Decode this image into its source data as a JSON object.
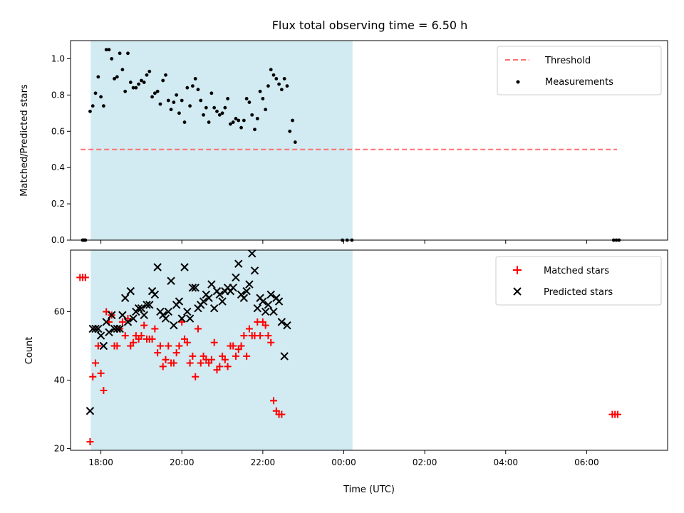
{
  "title": "Flux total observing time = 6.50 h",
  "colors": {
    "shade": "#add8e6",
    "threshold": "#ff7070",
    "measurement": "#000000",
    "matched": "#ff0000",
    "predicted": "#000000"
  },
  "chart_data": [
    {
      "type": "scatter",
      "ylabel": "Matched/Predicted stars",
      "xlim": [
        "17:15",
        "08:00"
      ],
      "ylim": [
        0,
        1.1
      ],
      "yticks": [
        0.0,
        0.2,
        0.4,
        0.6,
        0.8,
        1.0
      ],
      "ytick_labels": [
        "0.0",
        "0.2",
        "0.4",
        "0.6",
        "0.8",
        "1.0"
      ],
      "shaded_span": [
        "17:45",
        "00:13"
      ],
      "legend_position": "top-right",
      "legend": [
        "Threshold",
        "Measurements"
      ],
      "threshold": {
        "name": "Threshold",
        "y": 0.5,
        "x_range": [
          "17:30",
          "06:45"
        ],
        "style": "dashed"
      },
      "series": [
        {
          "name": "Measurements",
          "marker": "dot",
          "points": [
            [
              "17:33",
              0
            ],
            [
              "17:35",
              0
            ],
            [
              "17:37",
              0
            ],
            [
              "17:44",
              0.71
            ],
            [
              "17:48",
              0.74
            ],
            [
              "17:52",
              0.81
            ],
            [
              "17:56",
              0.9
            ],
            [
              "18:00",
              0.79
            ],
            [
              "18:04",
              0.74
            ],
            [
              "18:08",
              1.05
            ],
            [
              "18:12",
              1.05
            ],
            [
              "18:16",
              1.0
            ],
            [
              "18:20",
              0.89
            ],
            [
              "18:24",
              0.9
            ],
            [
              "18:28",
              1.03
            ],
            [
              "18:32",
              0.94
            ],
            [
              "18:36",
              0.82
            ],
            [
              "18:40",
              1.03
            ],
            [
              "18:44",
              0.87
            ],
            [
              "18:48",
              0.84
            ],
            [
              "18:52",
              0.84
            ],
            [
              "18:56",
              0.86
            ],
            [
              "19:00",
              0.88
            ],
            [
              "19:04",
              0.87
            ],
            [
              "19:08",
              0.91
            ],
            [
              "19:12",
              0.93
            ],
            [
              "19:16",
              0.79
            ],
            [
              "19:20",
              0.81
            ],
            [
              "19:24",
              0.82
            ],
            [
              "19:28",
              0.75
            ],
            [
              "19:32",
              0.88
            ],
            [
              "19:36",
              0.91
            ],
            [
              "19:40",
              0.77
            ],
            [
              "19:44",
              0.72
            ],
            [
              "19:48",
              0.76
            ],
            [
              "19:52",
              0.8
            ],
            [
              "19:56",
              0.7
            ],
            [
              "20:00",
              0.77
            ],
            [
              "20:04",
              0.65
            ],
            [
              "20:08",
              0.84
            ],
            [
              "20:12",
              0.74
            ],
            [
              "20:16",
              0.85
            ],
            [
              "20:20",
              0.89
            ],
            [
              "20:24",
              0.83
            ],
            [
              "20:28",
              0.77
            ],
            [
              "20:32",
              0.69
            ],
            [
              "20:36",
              0.73
            ],
            [
              "20:40",
              0.65
            ],
            [
              "20:44",
              0.81
            ],
            [
              "20:48",
              0.73
            ],
            [
              "20:52",
              0.71
            ],
            [
              "20:56",
              0.69
            ],
            [
              "21:00",
              0.7
            ],
            [
              "21:04",
              0.73
            ],
            [
              "21:08",
              0.78
            ],
            [
              "21:12",
              0.64
            ],
            [
              "21:16",
              0.65
            ],
            [
              "21:20",
              0.67
            ],
            [
              "21:24",
              0.66
            ],
            [
              "21:28",
              0.62
            ],
            [
              "21:32",
              0.66
            ],
            [
              "21:36",
              0.78
            ],
            [
              "21:40",
              0.76
            ],
            [
              "21:44",
              0.69
            ],
            [
              "21:48",
              0.61
            ],
            [
              "21:52",
              0.67
            ],
            [
              "21:56",
              0.82
            ],
            [
              "22:00",
              0.78
            ],
            [
              "22:04",
              0.72
            ],
            [
              "22:08",
              0.85
            ],
            [
              "22:12",
              0.94
            ],
            [
              "22:16",
              0.91
            ],
            [
              "22:20",
              0.89
            ],
            [
              "22:24",
              0.86
            ],
            [
              "22:28",
              0.83
            ],
            [
              "22:32",
              0.89
            ],
            [
              "22:36",
              0.85
            ],
            [
              "22:40",
              0.6
            ],
            [
              "22:44",
              0.66
            ],
            [
              "22:48",
              0.54
            ],
            [
              "23:58",
              0
            ],
            [
              "00:05",
              0
            ],
            [
              "00:12",
              0
            ],
            [
              "06:40",
              0
            ],
            [
              "06:44",
              0
            ],
            [
              "06:48",
              0
            ]
          ]
        }
      ]
    },
    {
      "type": "scatter",
      "xlabel": "Time (UTC)",
      "ylabel": "Count",
      "xlim": [
        "17:15",
        "08:00"
      ],
      "ylim": [
        19.5,
        78
      ],
      "yticks": [
        20,
        40,
        60
      ],
      "ytick_labels": [
        "20",
        "40",
        "60"
      ],
      "xticks": [
        "18:00",
        "20:00",
        "22:00",
        "00:00",
        "02:00",
        "04:00",
        "06:00"
      ],
      "shaded_span": [
        "17:45",
        "00:13"
      ],
      "legend_position": "top-right",
      "legend": [
        "Matched stars",
        "Predicted stars"
      ],
      "series": [
        {
          "name": "Matched stars",
          "marker": "plus",
          "points": [
            [
              "17:29",
              70
            ],
            [
              "17:33",
              70
            ],
            [
              "17:37",
              70
            ],
            [
              "17:44",
              22
            ],
            [
              "17:48",
              41
            ],
            [
              "17:52",
              45
            ],
            [
              "17:56",
              50
            ],
            [
              "18:00",
              42
            ],
            [
              "18:04",
              37
            ],
            [
              "18:08",
              60
            ],
            [
              "18:12",
              57
            ],
            [
              "18:16",
              59
            ],
            [
              "18:20",
              50
            ],
            [
              "18:24",
              50
            ],
            [
              "18:28",
              55
            ],
            [
              "18:32",
              57
            ],
            [
              "18:36",
              53
            ],
            [
              "18:40",
              58
            ],
            [
              "18:44",
              50
            ],
            [
              "18:48",
              51
            ],
            [
              "18:52",
              53
            ],
            [
              "18:56",
              52
            ],
            [
              "19:00",
              53
            ],
            [
              "19:04",
              56
            ],
            [
              "19:08",
              52
            ],
            [
              "19:12",
              52
            ],
            [
              "19:16",
              52
            ],
            [
              "19:20",
              55
            ],
            [
              "19:24",
              48
            ],
            [
              "19:28",
              50
            ],
            [
              "19:32",
              44
            ],
            [
              "19:36",
              46
            ],
            [
              "19:40",
              50
            ],
            [
              "19:44",
              45
            ],
            [
              "19:48",
              45
            ],
            [
              "19:52",
              48
            ],
            [
              "19:56",
              50
            ],
            [
              "20:00",
              57
            ],
            [
              "20:04",
              52
            ],
            [
              "20:08",
              51
            ],
            [
              "20:12",
              45
            ],
            [
              "20:16",
              47
            ],
            [
              "20:20",
              41
            ],
            [
              "20:24",
              55
            ],
            [
              "20:28",
              45
            ],
            [
              "20:32",
              47
            ],
            [
              "20:36",
              46
            ],
            [
              "20:40",
              45
            ],
            [
              "20:44",
              46
            ],
            [
              "20:48",
              51
            ],
            [
              "20:52",
              43
            ],
            [
              "20:56",
              44
            ],
            [
              "21:00",
              47
            ],
            [
              "21:04",
              46
            ],
            [
              "21:08",
              44
            ],
            [
              "21:12",
              50
            ],
            [
              "21:16",
              50
            ],
            [
              "21:20",
              47
            ],
            [
              "21:24",
              49
            ],
            [
              "21:28",
              50
            ],
            [
              "21:32",
              53
            ],
            [
              "21:36",
              47
            ],
            [
              "21:40",
              55
            ],
            [
              "21:44",
              53
            ],
            [
              "21:48",
              53
            ],
            [
              "21:52",
              57
            ],
            [
              "21:56",
              53
            ],
            [
              "22:00",
              57
            ],
            [
              "22:04",
              56
            ],
            [
              "22:08",
              53
            ],
            [
              "22:12",
              51
            ],
            [
              "22:16",
              34
            ],
            [
              "22:20",
              31
            ],
            [
              "22:24",
              30
            ],
            [
              "22:28",
              30
            ],
            [
              "06:38",
              30
            ],
            [
              "06:42",
              30
            ],
            [
              "06:46",
              30
            ]
          ]
        },
        {
          "name": "Predicted stars",
          "marker": "x",
          "points": [
            [
              "17:44",
              31
            ],
            [
              "17:48",
              55
            ],
            [
              "17:52",
              55
            ],
            [
              "17:56",
              55
            ],
            [
              "18:00",
              53
            ],
            [
              "18:04",
              50
            ],
            [
              "18:08",
              57
            ],
            [
              "18:12",
              54
            ],
            [
              "18:16",
              59
            ],
            [
              "18:20",
              55
            ],
            [
              "18:24",
              55
            ],
            [
              "18:28",
              55
            ],
            [
              "18:32",
              59
            ],
            [
              "18:36",
              64
            ],
            [
              "18:40",
              57
            ],
            [
              "18:44",
              66
            ],
            [
              "18:48",
              58
            ],
            [
              "18:52",
              60
            ],
            [
              "18:56",
              61
            ],
            [
              "19:00",
              61
            ],
            [
              "19:04",
              59
            ],
            [
              "19:08",
              62
            ],
            [
              "19:12",
              62
            ],
            [
              "19:16",
              66
            ],
            [
              "19:20",
              65
            ],
            [
              "19:24",
              73
            ],
            [
              "19:28",
              60
            ],
            [
              "19:32",
              59
            ],
            [
              "19:36",
              58
            ],
            [
              "19:40",
              60
            ],
            [
              "19:44",
              69
            ],
            [
              "19:48",
              56
            ],
            [
              "19:52",
              62
            ],
            [
              "19:56",
              63
            ],
            [
              "20:00",
              58
            ],
            [
              "20:04",
              73
            ],
            [
              "20:08",
              60
            ],
            [
              "20:12",
              58
            ],
            [
              "20:16",
              67
            ],
            [
              "20:20",
              67
            ],
            [
              "20:24",
              61
            ],
            [
              "20:28",
              62
            ],
            [
              "20:32",
              63
            ],
            [
              "20:36",
              65
            ],
            [
              "20:40",
              64
            ],
            [
              "20:44",
              68
            ],
            [
              "20:48",
              61
            ],
            [
              "20:52",
              66
            ],
            [
              "20:56",
              65
            ],
            [
              "21:00",
              63
            ],
            [
              "21:04",
              66
            ],
            [
              "21:08",
              67
            ],
            [
              "21:12",
              66
            ],
            [
              "21:16",
              67
            ],
            [
              "21:20",
              70
            ],
            [
              "21:24",
              74
            ],
            [
              "21:28",
              65
            ],
            [
              "21:32",
              64
            ],
            [
              "21:36",
              66
            ],
            [
              "21:40",
              68
            ],
            [
              "21:44",
              77
            ],
            [
              "21:48",
              72
            ],
            [
              "21:52",
              61
            ],
            [
              "21:56",
              64
            ],
            [
              "22:00",
              63
            ],
            [
              "22:04",
              60
            ],
            [
              "22:08",
              62
            ],
            [
              "22:12",
              65
            ],
            [
              "22:16",
              60
            ],
            [
              "22:20",
              64
            ],
            [
              "22:24",
              63
            ],
            [
              "22:28",
              57
            ],
            [
              "22:32",
              47
            ],
            [
              "22:36",
              56
            ]
          ]
        }
      ]
    }
  ]
}
